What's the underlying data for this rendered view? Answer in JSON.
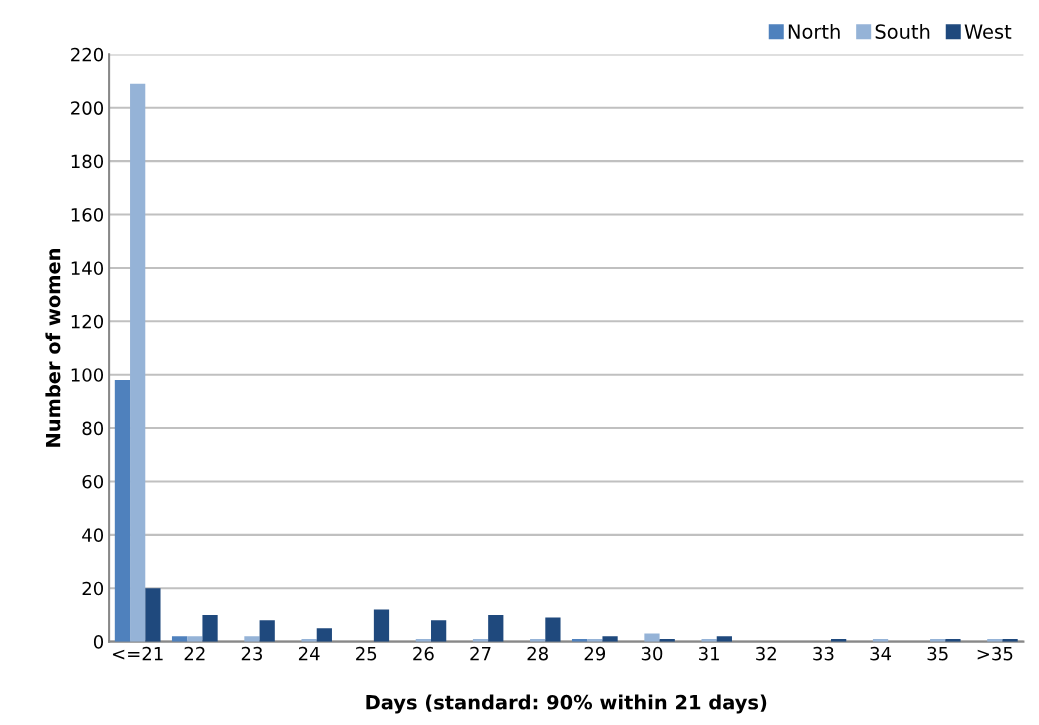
{
  "chart_data": {
    "type": "bar",
    "xlabel": "Days (standard: 90% within 21 days)",
    "ylabel": "Number of women",
    "categories": [
      "<=21",
      "22",
      "23",
      "24",
      "25",
      "26",
      "27",
      "28",
      "29",
      "30",
      "31",
      "32",
      "33",
      "34",
      "35",
      ">35"
    ],
    "series": [
      {
        "name": "North",
        "color": "#4f81bd",
        "values": [
          98,
          2,
          0,
          0,
          0,
          0,
          0,
          0,
          1,
          0,
          0,
          0,
          0,
          0,
          0,
          0
        ]
      },
      {
        "name": "South",
        "color": "#95b3d7",
        "values": [
          209,
          2,
          2,
          1,
          0,
          1,
          1,
          1,
          1,
          3,
          1,
          0,
          0,
          1,
          1,
          1
        ]
      },
      {
        "name": "West",
        "color": "#1f497d",
        "values": [
          20,
          10,
          8,
          5,
          12,
          8,
          10,
          9,
          2,
          1,
          2,
          0,
          1,
          0,
          1,
          1
        ]
      }
    ],
    "ylim": [
      0,
      220
    ],
    "yticks": [
      0,
      20,
      40,
      60,
      80,
      100,
      120,
      140,
      160,
      180,
      200,
      220
    ],
    "grid": "y",
    "legend": "top right"
  }
}
